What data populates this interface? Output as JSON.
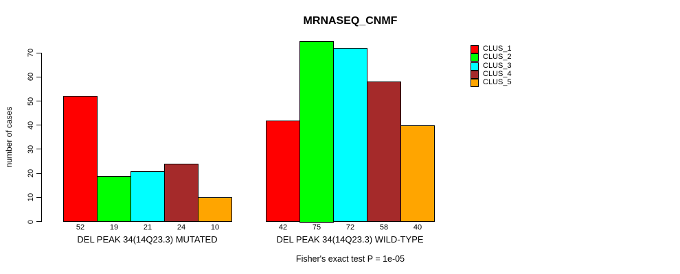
{
  "title": "MRNASEQ_CNMF",
  "y_axis": {
    "label": "number of cases",
    "ticks": [
      0,
      10,
      20,
      30,
      40,
      50,
      60,
      70
    ]
  },
  "footnote": "Fisher's exact test P = 1e-05",
  "legend": {
    "entries": [
      {
        "label": "CLUS_1",
        "color": "#FF0000"
      },
      {
        "label": "CLUS_2",
        "color": "#00FF00"
      },
      {
        "label": "CLUS_3",
        "color": "#00FFFF"
      },
      {
        "label": "CLUS_4",
        "color": "#A52A2A"
      },
      {
        "label": "CLUS_5",
        "color": "#FFA500"
      }
    ]
  },
  "chart_data": {
    "type": "bar",
    "title": "MRNASEQ_CNMF",
    "xlabel": "",
    "ylabel": "number of cases",
    "ylim": [
      0,
      75
    ],
    "yticks": [
      0,
      10,
      20,
      30,
      40,
      50,
      60,
      70
    ],
    "series": [
      "CLUS_1",
      "CLUS_2",
      "CLUS_3",
      "CLUS_4",
      "CLUS_5"
    ],
    "colors": [
      "#FF0000",
      "#00FF00",
      "#00FFFF",
      "#A52A2A",
      "#FFA500"
    ],
    "categories": [
      "DEL PEAK 34(14Q23.3) MUTATED",
      "DEL PEAK 34(14Q23.3) WILD-TYPE"
    ],
    "groups": [
      {
        "label": "DEL PEAK 34(14Q23.3) MUTATED",
        "values": [
          52,
          19,
          21,
          24,
          10
        ]
      },
      {
        "label": "DEL PEAK 34(14Q23.3) WILD-TYPE",
        "values": [
          42,
          75,
          72,
          58,
          40
        ]
      }
    ],
    "bar_value_labels_shown": true,
    "annotation": "Fisher's exact test P = 1e-05",
    "legend_position": "right",
    "grid": false
  }
}
